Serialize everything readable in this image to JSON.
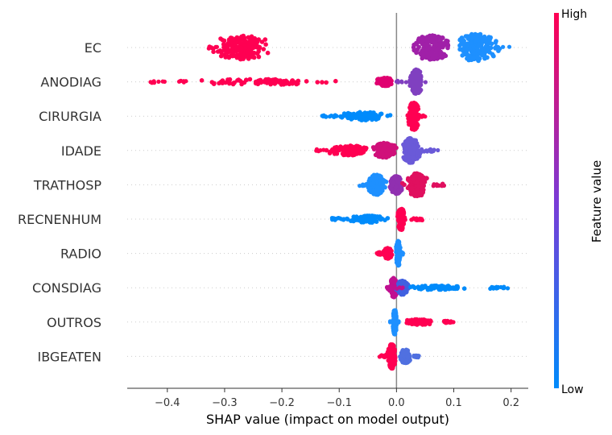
{
  "chart_data": {
    "type": "scatter",
    "subtype": "shap-beeswarm",
    "title": "",
    "xlabel": "SHAP value (impact on model output)",
    "ylabel": "",
    "xlim": [
      -0.47,
      0.23
    ],
    "xticks": [
      -0.4,
      -0.3,
      -0.2,
      -0.1,
      0.0,
      0.1,
      0.2
    ],
    "xtick_labels": [
      "−0.4",
      "−0.3",
      "−0.2",
      "−0.1",
      "0.0",
      "0.1",
      "0.2"
    ],
    "colorbar": {
      "title": "Feature value",
      "high_label": "High",
      "low_label": "Low",
      "low_color": "#008bfb",
      "mid_color": "#7a3bd6",
      "high_color": "#ff0052"
    },
    "features": [
      {
        "name": "EC",
        "min": -0.33,
        "max": 0.2,
        "clusters": [
          {
            "center": -0.27,
            "spread": 0.05,
            "height": 0.9,
            "color": "#ff0052"
          },
          {
            "center": 0.06,
            "spread": 0.035,
            "height": 0.9,
            "color": "#a020a8"
          },
          {
            "center": 0.14,
            "spread": 0.035,
            "height": 1.0,
            "color": "#1e90ff"
          }
        ]
      },
      {
        "name": "ANODIAG",
        "min": -0.44,
        "max": 0.06,
        "clusters": [
          {
            "center": -0.23,
            "spread": 0.15,
            "height": 0.2,
            "color": "#ff0052"
          },
          {
            "center": -0.02,
            "spread": 0.015,
            "height": 0.3,
            "color": "#e00070"
          },
          {
            "center": 0.035,
            "spread": 0.01,
            "height": 0.9,
            "color": "#8040c0"
          }
        ]
      },
      {
        "name": "CIRURGIA",
        "min": -0.13,
        "max": 0.05,
        "clusters": [
          {
            "center": -0.06,
            "spread": 0.04,
            "height": 0.3,
            "color": "#008bfb"
          },
          {
            "center": 0.03,
            "spread": 0.01,
            "height": 1.0,
            "color": "#ff0052"
          }
        ]
      },
      {
        "name": "IDADE",
        "min": -0.14,
        "max": 0.075,
        "clusters": [
          {
            "center": -0.08,
            "spread": 0.04,
            "height": 0.35,
            "color": "#ff0052"
          },
          {
            "center": -0.02,
            "spread": 0.02,
            "height": 0.55,
            "color": "#d0107a"
          },
          {
            "center": 0.025,
            "spread": 0.015,
            "height": 0.9,
            "color": "#6a5ad8"
          }
        ]
      },
      {
        "name": "TRATHOSP",
        "min": -0.065,
        "max": 0.085,
        "clusters": [
          {
            "center": -0.035,
            "spread": 0.015,
            "height": 0.75,
            "color": "#1e90ff"
          },
          {
            "center": 0.0,
            "spread": 0.012,
            "height": 0.65,
            "color": "#9030b0"
          },
          {
            "center": 0.035,
            "spread": 0.02,
            "height": 0.85,
            "color": "#e0105f"
          }
        ]
      },
      {
        "name": "RECNENHUM",
        "min": -0.115,
        "max": 0.045,
        "clusters": [
          {
            "center": -0.05,
            "spread": 0.035,
            "height": 0.25,
            "color": "#008bfb"
          },
          {
            "center": 0.008,
            "spread": 0.006,
            "height": 0.8,
            "color": "#ff0052"
          }
        ]
      },
      {
        "name": "RADIO",
        "min": -0.035,
        "max": 0.012,
        "clusters": [
          {
            "center": -0.015,
            "spread": 0.008,
            "height": 0.4,
            "color": "#ff0052"
          },
          {
            "center": 0.003,
            "spread": 0.004,
            "height": 0.9,
            "color": "#1e90ff"
          }
        ]
      },
      {
        "name": "CONSDIAG",
        "min": -0.02,
        "max": 0.195,
        "clusters": [
          {
            "center": -0.005,
            "spread": 0.006,
            "height": 0.7,
            "color": "#c01090"
          },
          {
            "center": 0.01,
            "spread": 0.01,
            "height": 0.5,
            "color": "#4060e0"
          },
          {
            "center": 0.07,
            "spread": 0.05,
            "height": 0.15,
            "color": "#008bfb"
          }
        ]
      },
      {
        "name": "OUTROS",
        "min": -0.013,
        "max": 0.1,
        "clusters": [
          {
            "center": -0.003,
            "spread": 0.003,
            "height": 0.9,
            "color": "#1e90ff"
          },
          {
            "center": 0.04,
            "spread": 0.025,
            "height": 0.2,
            "color": "#ff0052"
          }
        ]
      },
      {
        "name": "IBGEATEN",
        "min": -0.03,
        "max": 0.04,
        "clusters": [
          {
            "center": -0.008,
            "spread": 0.007,
            "height": 0.9,
            "color": "#ff0052"
          },
          {
            "center": 0.015,
            "spread": 0.01,
            "height": 0.5,
            "color": "#5070e0"
          }
        ]
      }
    ]
  }
}
